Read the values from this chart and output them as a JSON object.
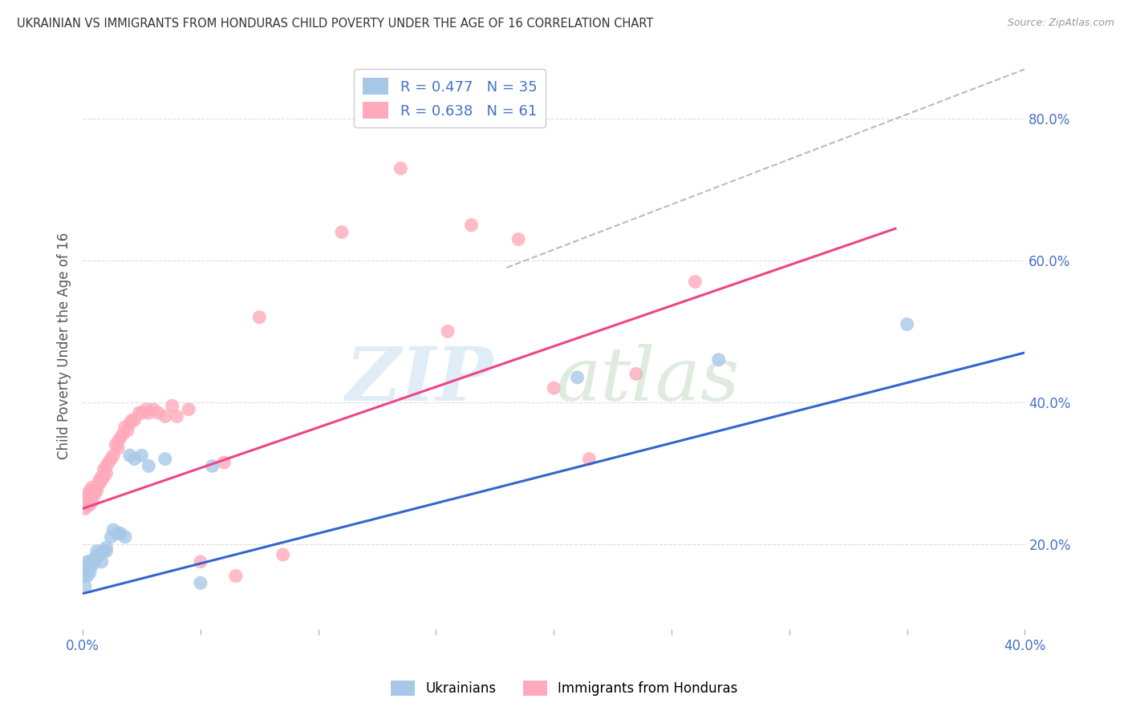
{
  "title": "UKRAINIAN VS IMMIGRANTS FROM HONDURAS CHILD POVERTY UNDER THE AGE OF 16 CORRELATION CHART",
  "source": "Source: ZipAtlas.com",
  "ylabel": "Child Poverty Under the Age of 16",
  "xlim": [
    0.0,
    0.4
  ],
  "ylim": [
    0.08,
    0.88
  ],
  "x_ticks": [
    0.0,
    0.05,
    0.1,
    0.15,
    0.2,
    0.25,
    0.3,
    0.35,
    0.4
  ],
  "y_ticks_right": [
    0.2,
    0.4,
    0.6,
    0.8
  ],
  "y_tick_labels_right": [
    "20.0%",
    "40.0%",
    "60.0%",
    "80.0%"
  ],
  "legend_r1": "R = 0.477",
  "legend_n1": "N = 35",
  "legend_r2": "R = 0.638",
  "legend_n2": "N = 61",
  "blue_color": "#a8c8e8",
  "pink_color": "#ffaabb",
  "blue_line_color": "#3366cc",
  "pink_line_color": "#ee4488",
  "dashed_line_color": "#bbbbbb",
  "title_color": "#333333",
  "tick_color": "#4472c4",
  "blue_line_x": [
    0.0,
    0.4
  ],
  "blue_line_y": [
    0.13,
    0.47
  ],
  "pink_line_x": [
    0.0,
    0.345
  ],
  "pink_line_y": [
    0.25,
    0.645
  ],
  "dash_line_x": [
    0.18,
    0.4
  ],
  "dash_line_y": [
    0.59,
    0.87
  ],
  "ukrainians_x": [
    0.001,
    0.001,
    0.001,
    0.002,
    0.002,
    0.002,
    0.003,
    0.003,
    0.003,
    0.004,
    0.004,
    0.005,
    0.005,
    0.006,
    0.006,
    0.007,
    0.008,
    0.009,
    0.01,
    0.01,
    0.012,
    0.013,
    0.015,
    0.016,
    0.018,
    0.02,
    0.022,
    0.025,
    0.028,
    0.035,
    0.05,
    0.055,
    0.35,
    0.27,
    0.21
  ],
  "ukrainians_y": [
    0.155,
    0.165,
    0.14,
    0.165,
    0.175,
    0.155,
    0.17,
    0.175,
    0.16,
    0.17,
    0.175,
    0.18,
    0.175,
    0.19,
    0.18,
    0.185,
    0.175,
    0.19,
    0.195,
    0.19,
    0.21,
    0.22,
    0.215,
    0.215,
    0.21,
    0.325,
    0.32,
    0.325,
    0.31,
    0.32,
    0.145,
    0.31,
    0.51,
    0.46,
    0.435
  ],
  "honduras_x": [
    0.001,
    0.001,
    0.001,
    0.002,
    0.002,
    0.002,
    0.003,
    0.003,
    0.003,
    0.004,
    0.004,
    0.004,
    0.005,
    0.005,
    0.006,
    0.006,
    0.007,
    0.007,
    0.008,
    0.008,
    0.009,
    0.009,
    0.01,
    0.01,
    0.011,
    0.012,
    0.013,
    0.014,
    0.015,
    0.015,
    0.016,
    0.017,
    0.018,
    0.019,
    0.02,
    0.021,
    0.022,
    0.024,
    0.025,
    0.027,
    0.028,
    0.03,
    0.032,
    0.035,
    0.038,
    0.04,
    0.045,
    0.05,
    0.06,
    0.065,
    0.075,
    0.085,
    0.11,
    0.135,
    0.155,
    0.165,
    0.185,
    0.2,
    0.215,
    0.235,
    0.26
  ],
  "honduras_y": [
    0.25,
    0.26,
    0.265,
    0.255,
    0.265,
    0.27,
    0.255,
    0.265,
    0.275,
    0.26,
    0.27,
    0.28,
    0.27,
    0.275,
    0.28,
    0.275,
    0.285,
    0.29,
    0.29,
    0.295,
    0.295,
    0.305,
    0.3,
    0.31,
    0.315,
    0.32,
    0.325,
    0.34,
    0.335,
    0.345,
    0.35,
    0.355,
    0.365,
    0.36,
    0.37,
    0.375,
    0.375,
    0.385,
    0.385,
    0.39,
    0.385,
    0.39,
    0.385,
    0.38,
    0.395,
    0.38,
    0.39,
    0.175,
    0.315,
    0.155,
    0.52,
    0.185,
    0.64,
    0.73,
    0.5,
    0.65,
    0.63,
    0.42,
    0.32,
    0.44,
    0.57
  ]
}
